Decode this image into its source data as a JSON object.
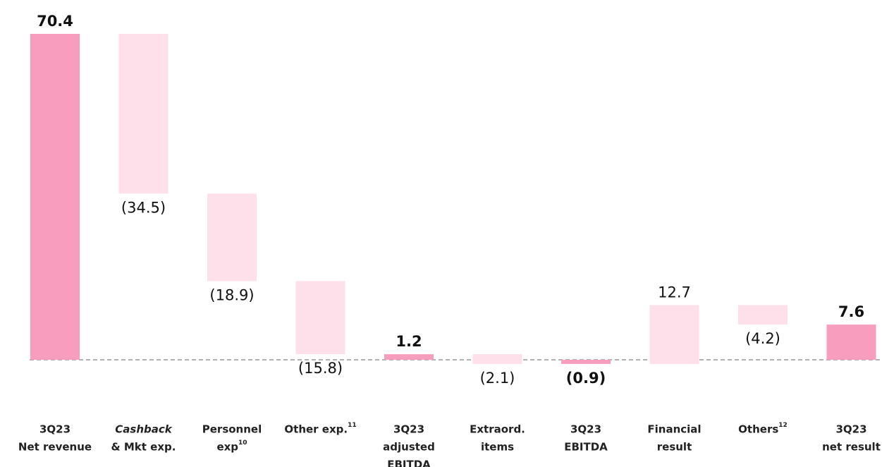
{
  "chart_data": {
    "type": "waterfall",
    "categories": [
      [
        "3Q23",
        "Net revenue"
      ],
      [
        "Cashback",
        "& Mkt exp."
      ],
      [
        "Personnel",
        "exp"
      ],
      [
        "Other exp."
      ],
      [
        "3Q23",
        "adjusted",
        "EBITDA"
      ],
      [
        "Extraord.",
        "items"
      ],
      [
        "3Q23",
        "EBITDA"
      ],
      [
        "Financial",
        "result"
      ],
      [
        "Others"
      ],
      [
        "3Q23",
        "net result"
      ]
    ],
    "category_notes": [
      null,
      null,
      "10",
      "11",
      null,
      null,
      null,
      null,
      "12",
      null
    ],
    "values": [
      70.4,
      -34.5,
      -18.9,
      -15.8,
      1.2,
      -2.1,
      -0.9,
      12.7,
      -4.2,
      7.6
    ],
    "value_labels": [
      "70.4",
      "(34.5)",
      "(18.9)",
      "(15.8)",
      "1.2",
      "(2.1)",
      "(0.9)",
      "12.7",
      "(4.2)",
      "7.6"
    ],
    "totals": [
      true,
      false,
      false,
      false,
      true,
      false,
      true,
      false,
      false,
      true
    ],
    "total_color": "#f99dbf",
    "delta_color": "#fde0ea",
    "ylim": [
      -5,
      72
    ]
  }
}
